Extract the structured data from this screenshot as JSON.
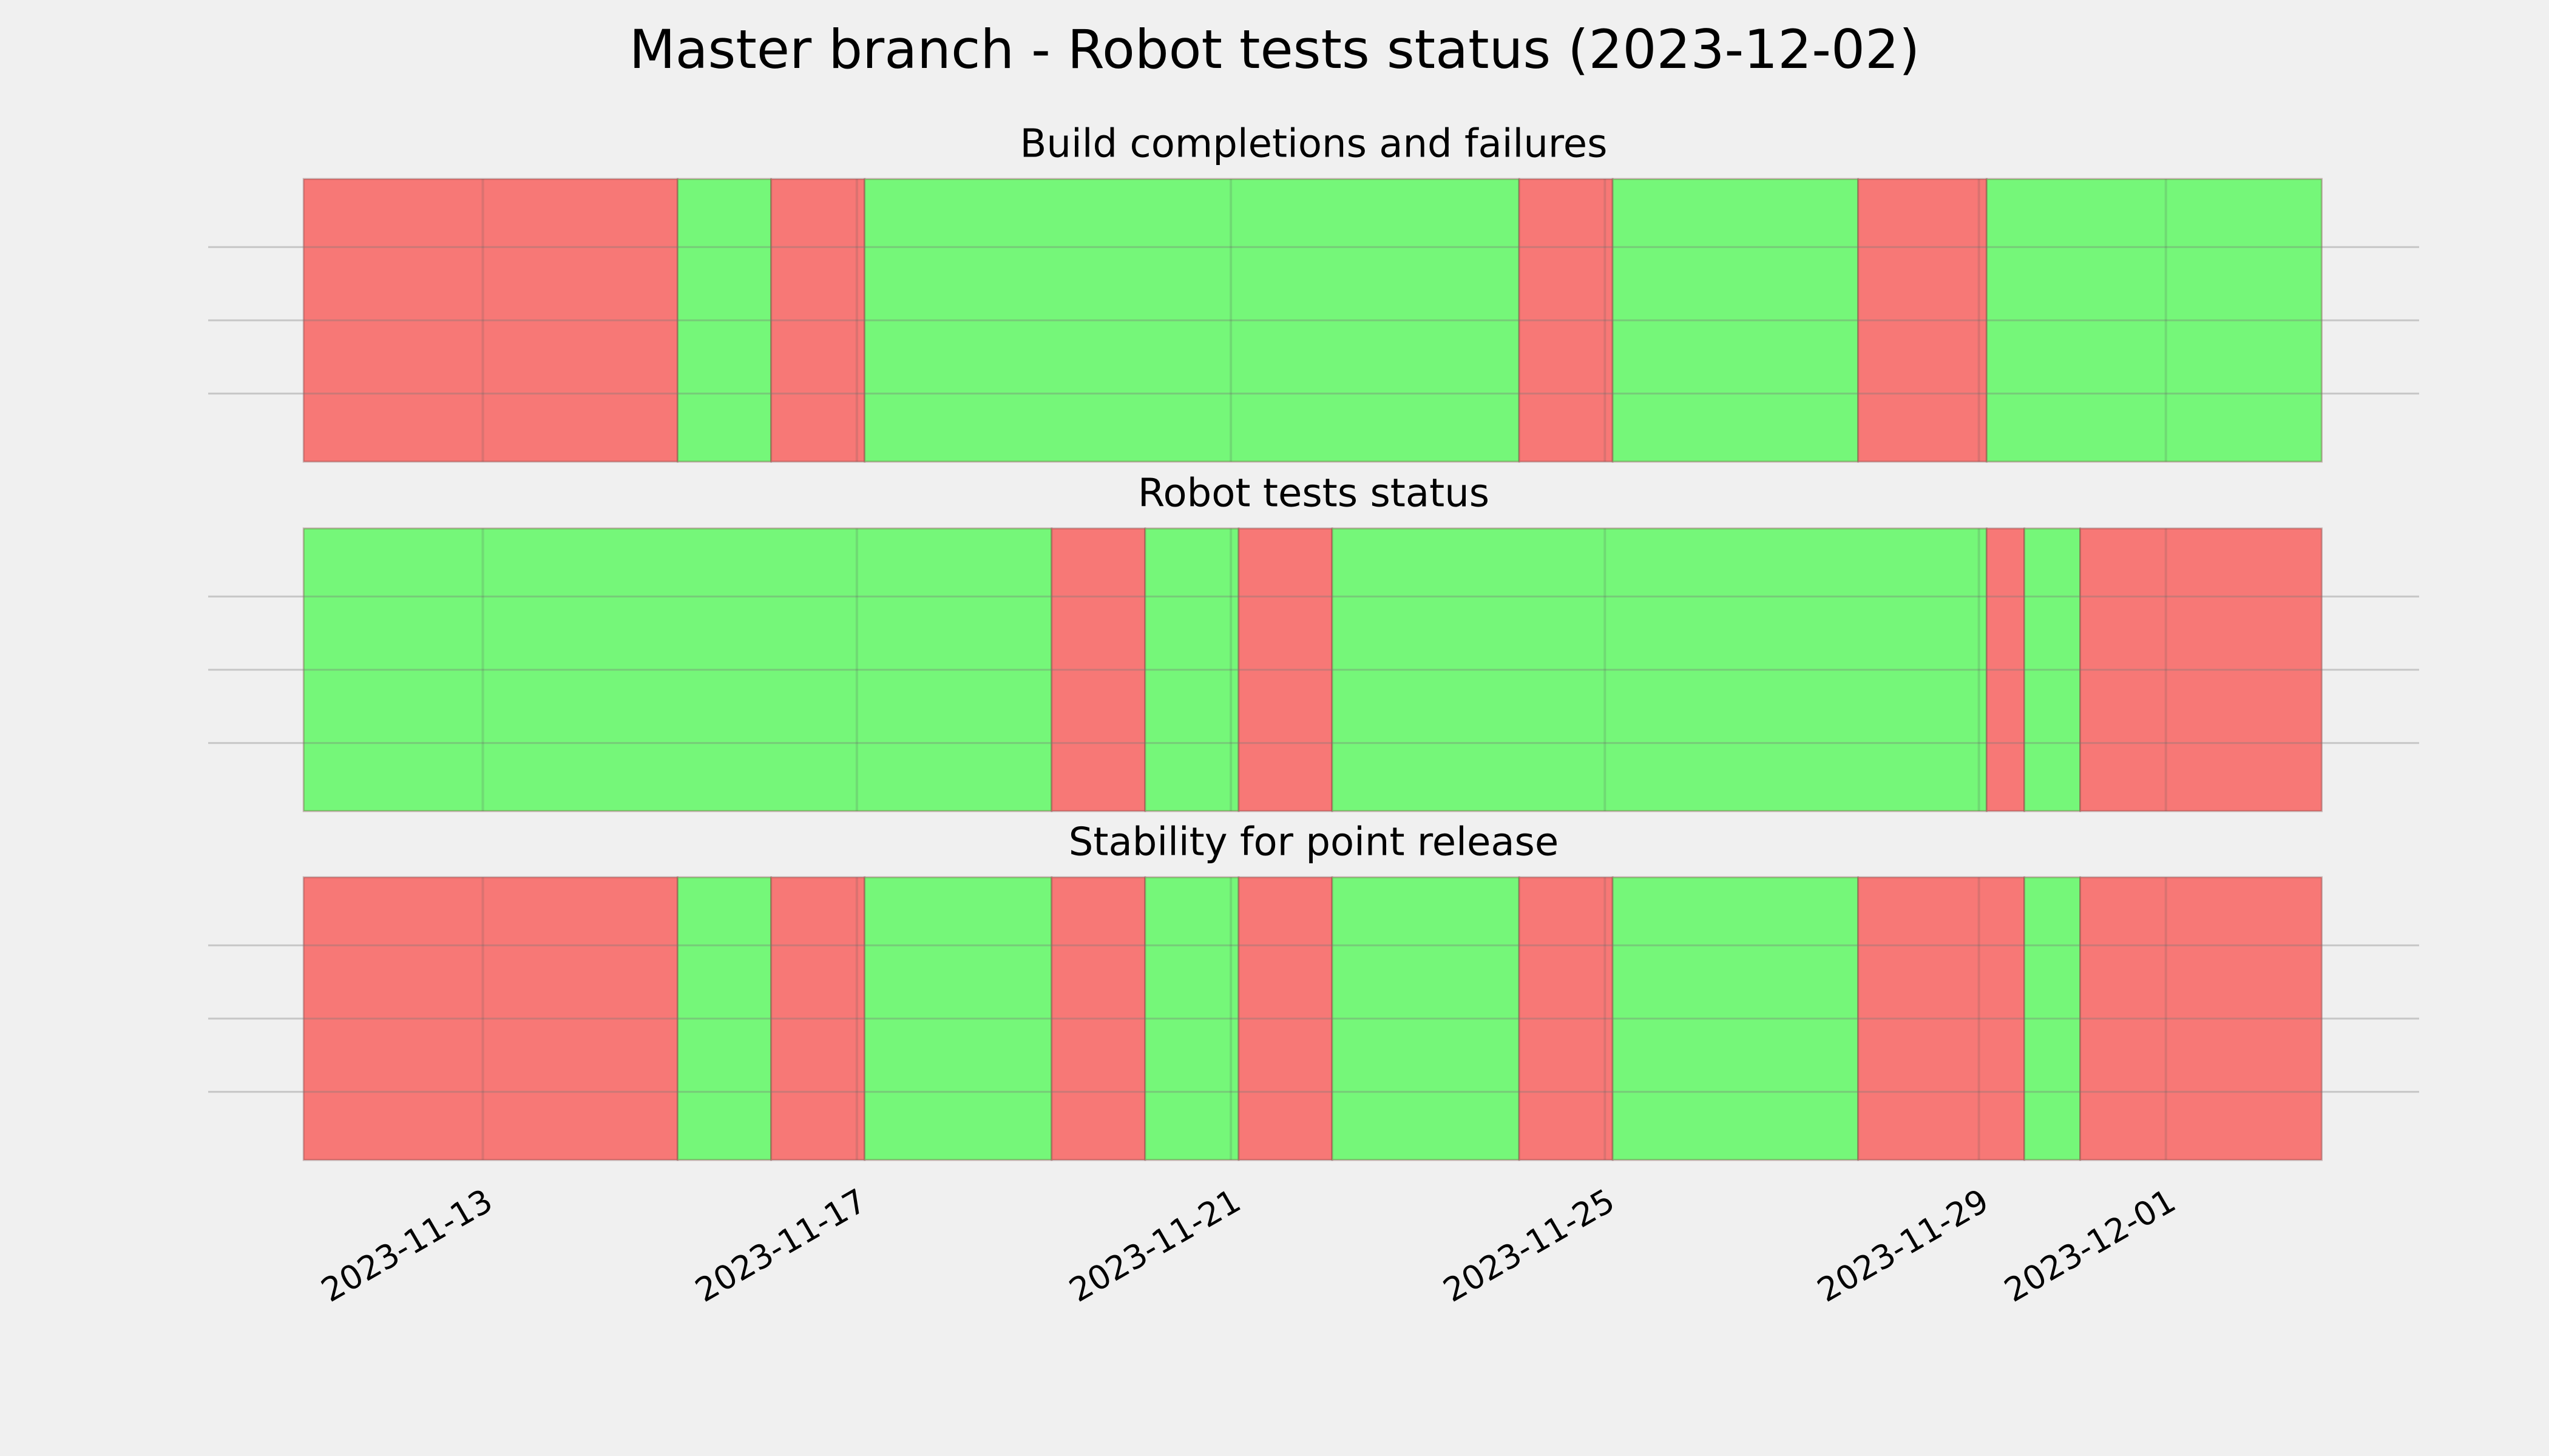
{
  "title": "Master branch - Robot tests status (2023-12-02)",
  "chart_data": [
    {
      "type": "timeline",
      "title": "Build completions and failures",
      "grid": true,
      "xlim": [
        "2023-11-10T01:30",
        "2023-12-03T17:00"
      ],
      "starts": [
        "2023-11-11T02:00",
        "2023-11-15T02:00",
        "2023-11-16T02:00",
        "2023-11-17T02:00",
        "2023-11-24T02:00",
        "2023-11-25T02:00",
        "2023-11-27T17:00",
        "2023-11-29T02:00"
      ],
      "ends": [
        "2023-11-15T02:00",
        "2023-11-16T02:00",
        "2023-11-17T02:00",
        "2023-11-24T02:00",
        "2023-11-25T02:00",
        "2023-11-27T17:00",
        "2023-11-29T02:00",
        "2023-12-02T16:00"
      ],
      "colors": [
        "#f77876",
        "#75f779",
        "#f77876",
        "#75f779",
        "#f77876",
        "#75f779",
        "#f77876",
        "#75f779"
      ]
    },
    {
      "type": "timeline",
      "title": "Robot tests status",
      "grid": true,
      "xlim": [
        "2023-11-10T01:30",
        "2023-12-03T17:00"
      ],
      "starts": [
        "2023-11-11T02:00",
        "2023-11-19T02:00",
        "2023-11-20T02:00",
        "2023-11-21T02:00",
        "2023-11-22T02:00",
        "2023-11-29T02:00",
        "2023-11-29T11:40",
        "2023-11-30T02:00"
      ],
      "ends": [
        "2023-11-19T02:00",
        "2023-11-20T02:00",
        "2023-11-21T02:00",
        "2023-11-22T02:00",
        "2023-11-29T02:00",
        "2023-11-29T11:40",
        "2023-11-30T02:00",
        "2023-12-02T16:00"
      ],
      "colors": [
        "#75f779",
        "#f77876",
        "#75f779",
        "#f77876",
        "#75f779",
        "#f77876",
        "#75f779",
        "#f77876"
      ]
    },
    {
      "type": "timeline",
      "title": "Stability for point release",
      "grid": true,
      "xlim": [
        "2023-11-10T01:30",
        "2023-12-03T17:00"
      ],
      "xticks": [
        "2023-11-13",
        "2023-11-17",
        "2023-11-21",
        "2023-11-25",
        "2023-11-29",
        "2023-12-01"
      ],
      "starts": [
        "2023-11-11T02:00",
        "2023-11-15T02:00",
        "2023-11-16T02:00",
        "2023-11-17T02:00",
        "2023-11-19T02:00",
        "2023-11-20T02:00",
        "2023-11-21T02:00",
        "2023-11-22T02:00",
        "2023-11-24T02:00",
        "2023-11-25T02:00",
        "2023-11-27T17:00",
        "2023-11-29T11:40",
        "2023-11-30T02:00"
      ],
      "ends": [
        "2023-11-15T02:00",
        "2023-11-16T02:00",
        "2023-11-17T02:00",
        "2023-11-19T02:00",
        "2023-11-20T02:00",
        "2023-11-21T02:00",
        "2023-11-22T02:00",
        "2023-11-24T02:00",
        "2023-11-25T02:00",
        "2023-11-27T17:00",
        "2023-11-29T11:40",
        "2023-11-30T02:00",
        "2023-12-02T16:00"
      ],
      "colors": [
        "#f77876",
        "#75f779",
        "#f77876",
        "#75f779",
        "#f77876",
        "#75f779",
        "#f77876",
        "#75f779",
        "#f77876",
        "#75f779",
        "#f77876",
        "#75f779",
        "#f77876"
      ]
    }
  ]
}
